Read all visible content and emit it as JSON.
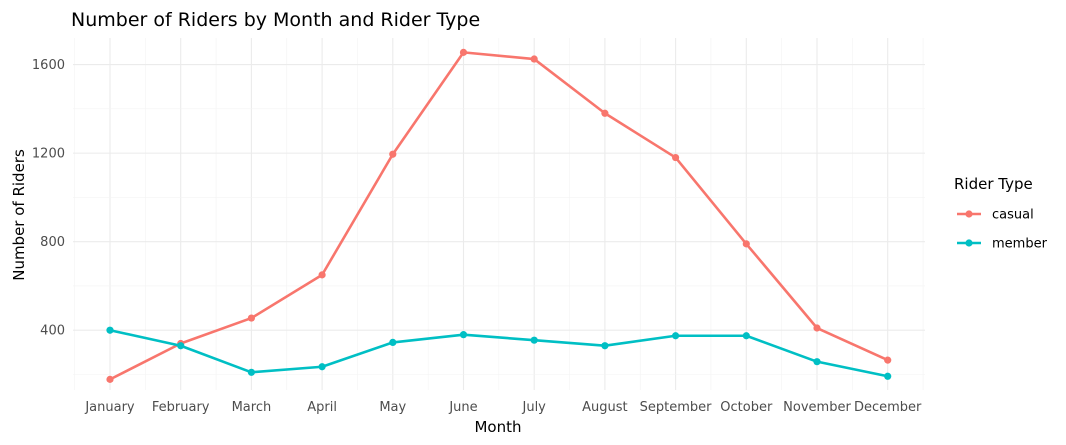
{
  "chart_data": {
    "type": "line",
    "title": "Number of Riders by Month and Rider Type",
    "xlabel": "Month",
    "ylabel": "Number of Riders",
    "categories": [
      "January",
      "February",
      "March",
      "April",
      "May",
      "June",
      "July",
      "August",
      "September",
      "October",
      "November",
      "December"
    ],
    "yticks": [
      400,
      800,
      1200,
      1600
    ],
    "ylim": [
      130,
      1720
    ],
    "grid": true,
    "legend": {
      "title": "Rider Type",
      "position": "right"
    },
    "series": [
      {
        "name": "casual",
        "color": "#F8766D",
        "values": [
          178,
          340,
          455,
          650,
          1195,
          1655,
          1625,
          1380,
          1180,
          790,
          410,
          265
        ]
      },
      {
        "name": "member",
        "color": "#00BFC4",
        "values": [
          400,
          330,
          210,
          235,
          345,
          380,
          355,
          330,
          375,
          375,
          258,
          192
        ]
      }
    ]
  }
}
